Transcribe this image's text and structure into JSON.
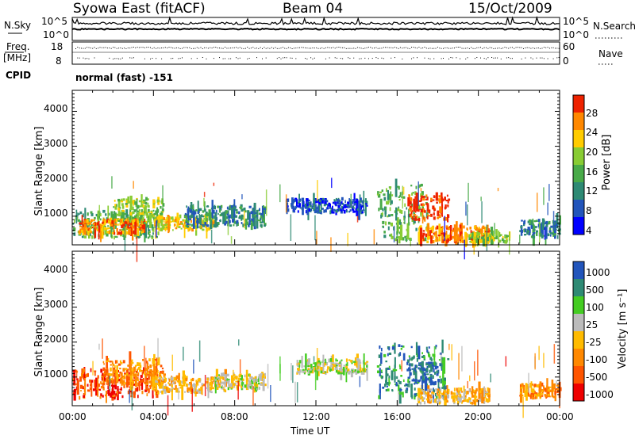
{
  "header": {
    "title": "Syowa East (fitACF)",
    "beam": "Beam 04",
    "date": "15/Oct/2009"
  },
  "status_panels": {
    "nsky_label": "N.Sky",
    "nsearch_label": "N.Search",
    "nsky_ticks": [
      "10^5",
      "10^0"
    ],
    "nsearch_ticks": [
      "10^5",
      "10^0"
    ],
    "freq_label_line1": "Freq.",
    "freq_label_line2": "[MHz]",
    "freq_ticks": [
      "18",
      "8"
    ],
    "nave_label": "Nave",
    "nave_ticks": [
      "60",
      "0"
    ],
    "cpid_label": "CPID",
    "cpid_text": "normal (fast) -151"
  },
  "colors": {
    "power": [
      "#0000ff",
      "#2255bb",
      "#2e8a74",
      "#48aa48",
      "#88cc33",
      "#ffcc00",
      "#ff8800",
      "#ee2200"
    ],
    "velocity": [
      "#ee0000",
      "#ff5500",
      "#ff8800",
      "#ffbb00",
      "#bbbbbb",
      "#44cc22",
      "#2e8a74",
      "#2255bb"
    ]
  },
  "chart_data": [
    {
      "type": "heatmap",
      "name": "power",
      "ylabel": "Slant Range [km]",
      "yticks": [
        "1000",
        "2000",
        "3000",
        "4000"
      ],
      "ylim": [
        180,
        4600
      ],
      "xlim": [
        "00:00",
        "24:00"
      ],
      "colorbar": {
        "label": "Power [dB]",
        "ticks": [
          "4",
          "8",
          "12",
          "16",
          "20",
          "24",
          "28"
        ],
        "range": [
          0,
          30
        ]
      },
      "regions": [
        {
          "t0": 0.0,
          "t1": 4.2,
          "r0": 380,
          "r1": 1150,
          "level": 3
        },
        {
          "t0": 0.3,
          "t1": 3.5,
          "r0": 500,
          "r1": 900,
          "level": 6
        },
        {
          "t0": 2.0,
          "t1": 4.5,
          "r0": 800,
          "r1": 1500,
          "level": 4
        },
        {
          "t0": 4.0,
          "t1": 7.0,
          "r0": 600,
          "r1": 1000,
          "level": 5
        },
        {
          "t0": 5.5,
          "t1": 9.5,
          "r0": 700,
          "r1": 1300,
          "level": 2
        },
        {
          "t0": 10.5,
          "t1": 14.5,
          "r0": 1100,
          "r1": 1500,
          "level": 1
        },
        {
          "t0": 15.0,
          "t1": 17.5,
          "r0": 300,
          "r1": 1900,
          "level": 3
        },
        {
          "t0": 16.5,
          "t1": 18.5,
          "r0": 900,
          "r1": 1600,
          "level": 7
        },
        {
          "t0": 17.0,
          "t1": 20.5,
          "r0": 250,
          "r1": 700,
          "level": 6
        },
        {
          "t0": 19.5,
          "t1": 21.5,
          "r0": 250,
          "r1": 500,
          "level": 4
        },
        {
          "t0": 22.0,
          "t1": 24.0,
          "r0": 400,
          "r1": 900,
          "level": 2
        }
      ]
    },
    {
      "type": "heatmap",
      "name": "velocity",
      "ylabel": "Slant Range [km]",
      "xlabel": "Time UT",
      "xticks": [
        "00:00",
        "04:00",
        "08:00",
        "12:00",
        "16:00",
        "20:00",
        "00:00"
      ],
      "yticks": [
        "1000",
        "2000",
        "3000",
        "4000"
      ],
      "ylim": [
        180,
        4600
      ],
      "xlim": [
        "00:00",
        "24:00"
      ],
      "colorbar": {
        "label": "Velocity [m s⁻¹]",
        "ticks": [
          "-1000",
          "-500",
          "-100",
          "-25",
          "25",
          "100",
          "500",
          "1000"
        ]
      },
      "regions": [
        {
          "t0": 0.0,
          "t1": 4.2,
          "r0": 400,
          "r1": 1200,
          "level": 1
        },
        {
          "t0": 1.5,
          "t1": 4.5,
          "r0": 800,
          "r1": 1500,
          "level": 2
        },
        {
          "t0": 4.0,
          "t1": 7.5,
          "r0": 550,
          "r1": 1000,
          "level": 3
        },
        {
          "t0": 7.0,
          "t1": 9.5,
          "r0": 650,
          "r1": 1100,
          "level": 4
        },
        {
          "t0": 11.0,
          "t1": 14.5,
          "r0": 1100,
          "r1": 1500,
          "level": 4
        },
        {
          "t0": 15.0,
          "t1": 18.5,
          "r0": 400,
          "r1": 1900,
          "level": 6
        },
        {
          "t0": 17.0,
          "t1": 20.5,
          "r0": 250,
          "r1": 650,
          "level": 3
        },
        {
          "t0": 16.5,
          "t1": 18.0,
          "r0": 800,
          "r1": 1400,
          "level": 7
        },
        {
          "t0": 22.0,
          "t1": 24.0,
          "r0": 400,
          "r1": 800,
          "level": 2
        }
      ]
    }
  ]
}
